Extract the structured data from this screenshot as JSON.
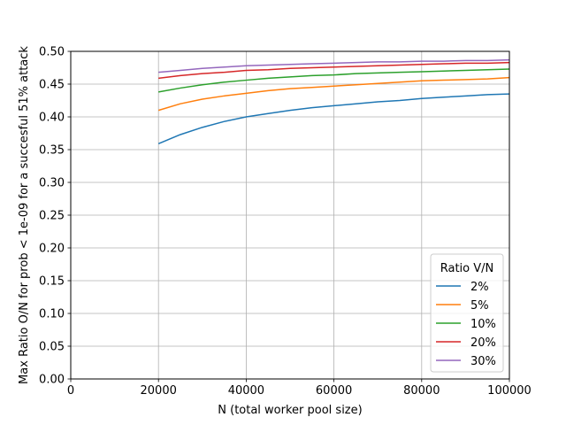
{
  "chart_data": {
    "type": "line",
    "title": "",
    "xlabel": "N (total worker pool size)",
    "ylabel": "Max Ratio O/N for prob < 1e-09 for a succesful 51% attack",
    "xlim": [
      0,
      100000
    ],
    "ylim": [
      0.0,
      0.5
    ],
    "xticks": [
      0,
      20000,
      40000,
      60000,
      80000,
      100000
    ],
    "xtick_labels": [
      "0",
      "20000",
      "40000",
      "60000",
      "80000",
      "100000"
    ],
    "yticks": [
      0.0,
      0.05,
      0.1,
      0.15,
      0.2,
      0.25,
      0.3,
      0.35,
      0.4,
      0.45,
      0.5
    ],
    "ytick_labels": [
      "0.00",
      "0.05",
      "0.10",
      "0.15",
      "0.20",
      "0.25",
      "0.30",
      "0.35",
      "0.40",
      "0.45",
      "0.50"
    ],
    "grid": true,
    "legend": {
      "title": "Ratio V/N",
      "placement": "lower-right"
    },
    "x": [
      20000,
      25000,
      30000,
      35000,
      40000,
      45000,
      50000,
      55000,
      60000,
      65000,
      70000,
      75000,
      80000,
      85000,
      90000,
      95000,
      100000
    ],
    "series": [
      {
        "name": "2%",
        "color": "#1f77b4",
        "values": [
          0.359,
          0.373,
          0.384,
          0.393,
          0.4,
          0.405,
          0.41,
          0.414,
          0.417,
          0.42,
          0.423,
          0.425,
          0.428,
          0.43,
          0.432,
          0.434,
          0.435
        ]
      },
      {
        "name": "5%",
        "color": "#ff7f0e",
        "values": [
          0.41,
          0.42,
          0.427,
          0.432,
          0.436,
          0.44,
          0.443,
          0.445,
          0.447,
          0.449,
          0.451,
          0.453,
          0.455,
          0.456,
          0.457,
          0.458,
          0.46
        ]
      },
      {
        "name": "10%",
        "color": "#2ca02c",
        "values": [
          0.438,
          0.444,
          0.449,
          0.453,
          0.456,
          0.459,
          0.461,
          0.463,
          0.464,
          0.466,
          0.467,
          0.468,
          0.469,
          0.47,
          0.471,
          0.472,
          0.473
        ]
      },
      {
        "name": "20%",
        "color": "#d62728",
        "values": [
          0.459,
          0.463,
          0.466,
          0.468,
          0.471,
          0.472,
          0.474,
          0.475,
          0.476,
          0.477,
          0.478,
          0.479,
          0.48,
          0.481,
          0.482,
          0.482,
          0.483
        ]
      },
      {
        "name": "30%",
        "color": "#9467bd",
        "values": [
          0.468,
          0.471,
          0.474,
          0.476,
          0.478,
          0.479,
          0.48,
          0.481,
          0.482,
          0.483,
          0.484,
          0.484,
          0.485,
          0.485,
          0.486,
          0.486,
          0.487
        ]
      }
    ]
  }
}
